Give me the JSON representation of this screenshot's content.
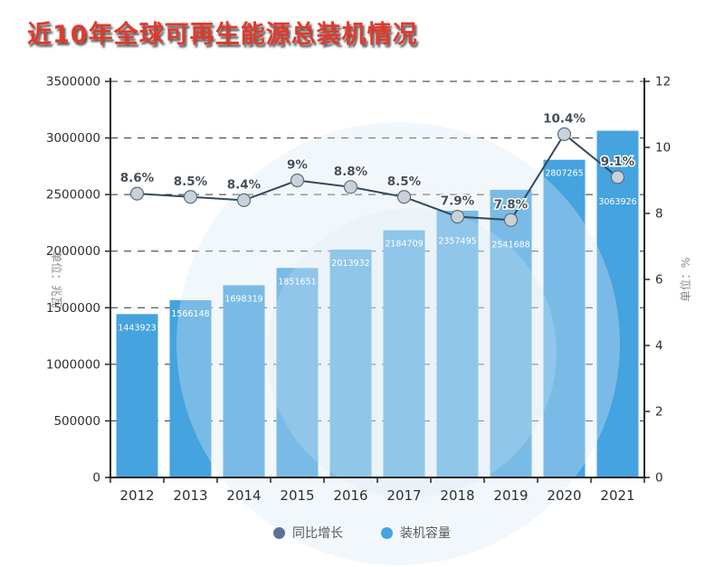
{
  "title": "近10年全球可再生能源总装机情况",
  "colors": {
    "title": "#e23a2c",
    "axis": "#262626",
    "grid": "#2b2b2b",
    "tick_label": "#2f2f2f",
    "axis_title": "#8a8a8a",
    "bar": "#45a3df",
    "bar_label": "#ffffff",
    "line": "#35495e",
    "marker_fill": "#c9d2da",
    "marker_stroke": "#5d6f81",
    "percent_label": "#454f5b"
  },
  "legend": {
    "items": [
      {
        "label": "同比增长",
        "color": "#5c7293"
      },
      {
        "label": "装机容量",
        "color": "#45a3df"
      }
    ]
  },
  "chart_data": {
    "type": "bar",
    "subtype": "bar+line dual-axis combo",
    "title": "近10年全球可再生能源总装机情况",
    "categories": [
      "2012",
      "2013",
      "2014",
      "2015",
      "2016",
      "2017",
      "2018",
      "2019",
      "2020",
      "2021"
    ],
    "series": [
      {
        "name": "装机容量",
        "type": "bar",
        "axis": "left",
        "values": [
          1443923,
          1566148,
          1698319,
          1851651,
          2013932,
          2184709,
          2357495,
          2541688,
          2807265,
          3063926
        ],
        "value_labels": [
          "1443923",
          "1566148",
          "1698319",
          "1851651",
          "2013932",
          "2184709",
          "2357495",
          "2541688",
          "2807265",
          "3063926"
        ]
      },
      {
        "name": "同比增长",
        "type": "line",
        "axis": "right",
        "values": [
          8.6,
          8.5,
          8.4,
          9,
          8.8,
          8.5,
          7.9,
          7.8,
          10.4,
          9.1
        ],
        "value_labels": [
          "8.6%",
          "8.5%",
          "8.4%",
          "9%",
          "8.8%",
          "8.5%",
          "7.9%",
          "7.8%",
          "10.4%",
          "9.1%"
        ]
      }
    ],
    "left_axis": {
      "title": "单位：兆瓦",
      "min": 0,
      "max": 3500000,
      "ticks": [
        0,
        500000,
        1000000,
        1500000,
        2000000,
        2500000,
        3000000,
        3500000
      ],
      "tick_labels": [
        "0",
        "500000",
        "1000000",
        "1500000",
        "2000000",
        "2500000",
        "3000000",
        "3500000"
      ]
    },
    "right_axis": {
      "title": "单位：%",
      "min": 0,
      "max": 12,
      "ticks": [
        0,
        2,
        4,
        6,
        8,
        10,
        12
      ],
      "tick_labels": [
        "0",
        "2",
        "4",
        "6",
        "8",
        "10",
        "12"
      ]
    },
    "grid": "horizontal dashed lines on",
    "legend_position": "bottom-center"
  }
}
